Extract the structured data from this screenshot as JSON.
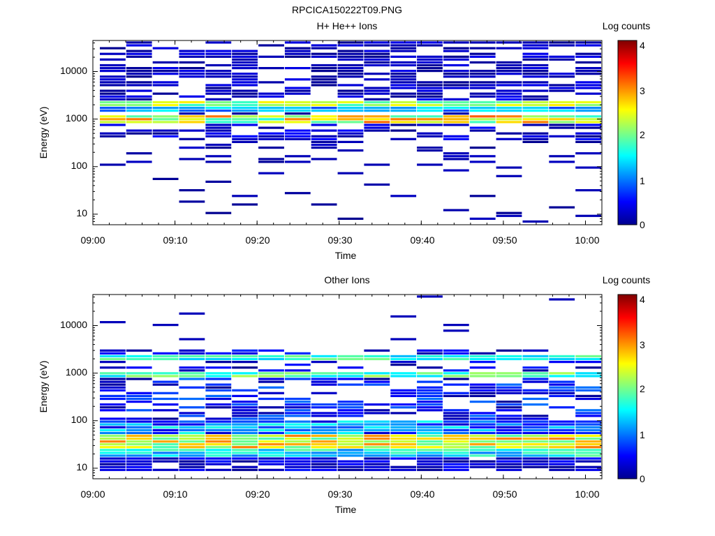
{
  "figure_title": "RPCICA150222T09.PNG",
  "chart_data": [
    {
      "type": "heatmap",
      "title": "H+ He++ Ions",
      "xlabel": "Time",
      "ylabel": "Energy (eV)",
      "y_scale": "log",
      "ylim": [
        6,
        45000
      ],
      "xlim": [
        "09:00",
        "10:02"
      ],
      "x_ticks": [
        "09:00",
        "09:10",
        "09:20",
        "09:30",
        "09:40",
        "09:50",
        "10:00"
      ],
      "y_ticks": [
        "10",
        "100",
        "1000",
        "10000"
      ],
      "colorbar": {
        "label": "Log counts",
        "range": [
          0,
          4.2
        ],
        "ticks": [
          "0",
          "1",
          "2",
          "3",
          "4"
        ]
      },
      "time_bins": [
        "09:01",
        "09:04",
        "09:07",
        "09:10",
        "09:14",
        "09:17",
        "09:20",
        "09:24",
        "09:27",
        "09:30",
        "09:34",
        "09:37",
        "09:40",
        "09:43",
        "09:47",
        "09:50",
        "09:53",
        "09:57",
        "10:00"
      ],
      "features": [
        {
          "band": "2000 eV",
          "typical_log_counts": 2.3
        },
        {
          "band": "800 eV",
          "typical_log_counts": 2.5
        },
        {
          "band": "low-count lines 15-40000 eV",
          "typical_log_counts": 0.3
        }
      ]
    },
    {
      "type": "heatmap",
      "title": "Other Ions",
      "xlabel": "Time",
      "ylabel": "Energy (eV)",
      "y_scale": "log",
      "ylim": [
        6,
        45000
      ],
      "xlim": [
        "09:00",
        "10:02"
      ],
      "x_ticks": [
        "09:00",
        "09:10",
        "09:20",
        "09:30",
        "09:40",
        "09:50",
        "10:00"
      ],
      "y_ticks": [
        "10",
        "100",
        "1000",
        "10000"
      ],
      "colorbar": {
        "label": "Log counts",
        "range": [
          0,
          4.2
        ],
        "ticks": [
          "0",
          "1",
          "2",
          "3",
          "4"
        ]
      },
      "time_bins": [
        "09:01",
        "09:04",
        "09:07",
        "09:10",
        "09:14",
        "09:17",
        "09:20",
        "09:24",
        "09:27",
        "09:30",
        "09:34",
        "09:37",
        "09:40",
        "09:43",
        "09:47",
        "09:50",
        "09:53",
        "09:57",
        "10:00"
      ],
      "features": [
        {
          "band": "2000 eV",
          "typical_log_counts": 1.8
        },
        {
          "band": "900 eV",
          "typical_log_counts": 2.0
        },
        {
          "band": "25-40 eV",
          "typical_log_counts": 3.0
        },
        {
          "band": "10-20 eV",
          "typical_log_counts": 0.5
        }
      ]
    }
  ]
}
